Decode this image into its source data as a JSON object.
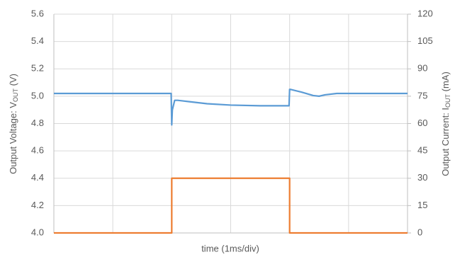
{
  "chart_data": {
    "type": "line",
    "xlabel": "time (1ms/div)",
    "ylabel_parts": [
      "Output Voltage: V",
      "OUT",
      " (V)"
    ],
    "y2label_parts": [
      "Output Current: I",
      "OUT",
      " (mA)"
    ],
    "xlim": [
      0,
      6
    ],
    "xticks": [
      0,
      1,
      2,
      3,
      4,
      5,
      6
    ],
    "ylim": [
      4.0,
      5.6
    ],
    "yticks": [
      {
        "value": 4.0,
        "label": "4.0"
      },
      4.2,
      4.4,
      4.6,
      4.8,
      {
        "value": 5.0,
        "label": "5.0"
      },
      5.2,
      5.4,
      5.6
    ],
    "y2lim": [
      0,
      120
    ],
    "y2ticks": [
      0,
      15,
      30,
      45,
      60,
      75,
      90,
      105,
      120
    ],
    "grid": true,
    "series": [
      {
        "color": "#5b9bd5",
        "axis": "y",
        "x": [
          0,
          1.99,
          2.0,
          2.01,
          2.05,
          2.1,
          2.3,
          2.6,
          3.0,
          3.5,
          3.99,
          4.0,
          4.01,
          4.2,
          4.4,
          4.5,
          4.6,
          4.8,
          5.0,
          6.0
        ],
        "values": [
          5.02,
          5.02,
          4.79,
          4.9,
          4.97,
          4.97,
          4.96,
          4.945,
          4.935,
          4.93,
          4.93,
          5.05,
          5.05,
          5.03,
          5.005,
          5.0,
          5.01,
          5.02,
          5.02,
          5.02
        ]
      },
      {
        "color": "#ed7d31",
        "axis": "y2",
        "x": [
          0,
          2,
          2,
          4,
          4,
          6
        ],
        "values": [
          0,
          0,
          30,
          30,
          0,
          0
        ]
      }
    ]
  }
}
